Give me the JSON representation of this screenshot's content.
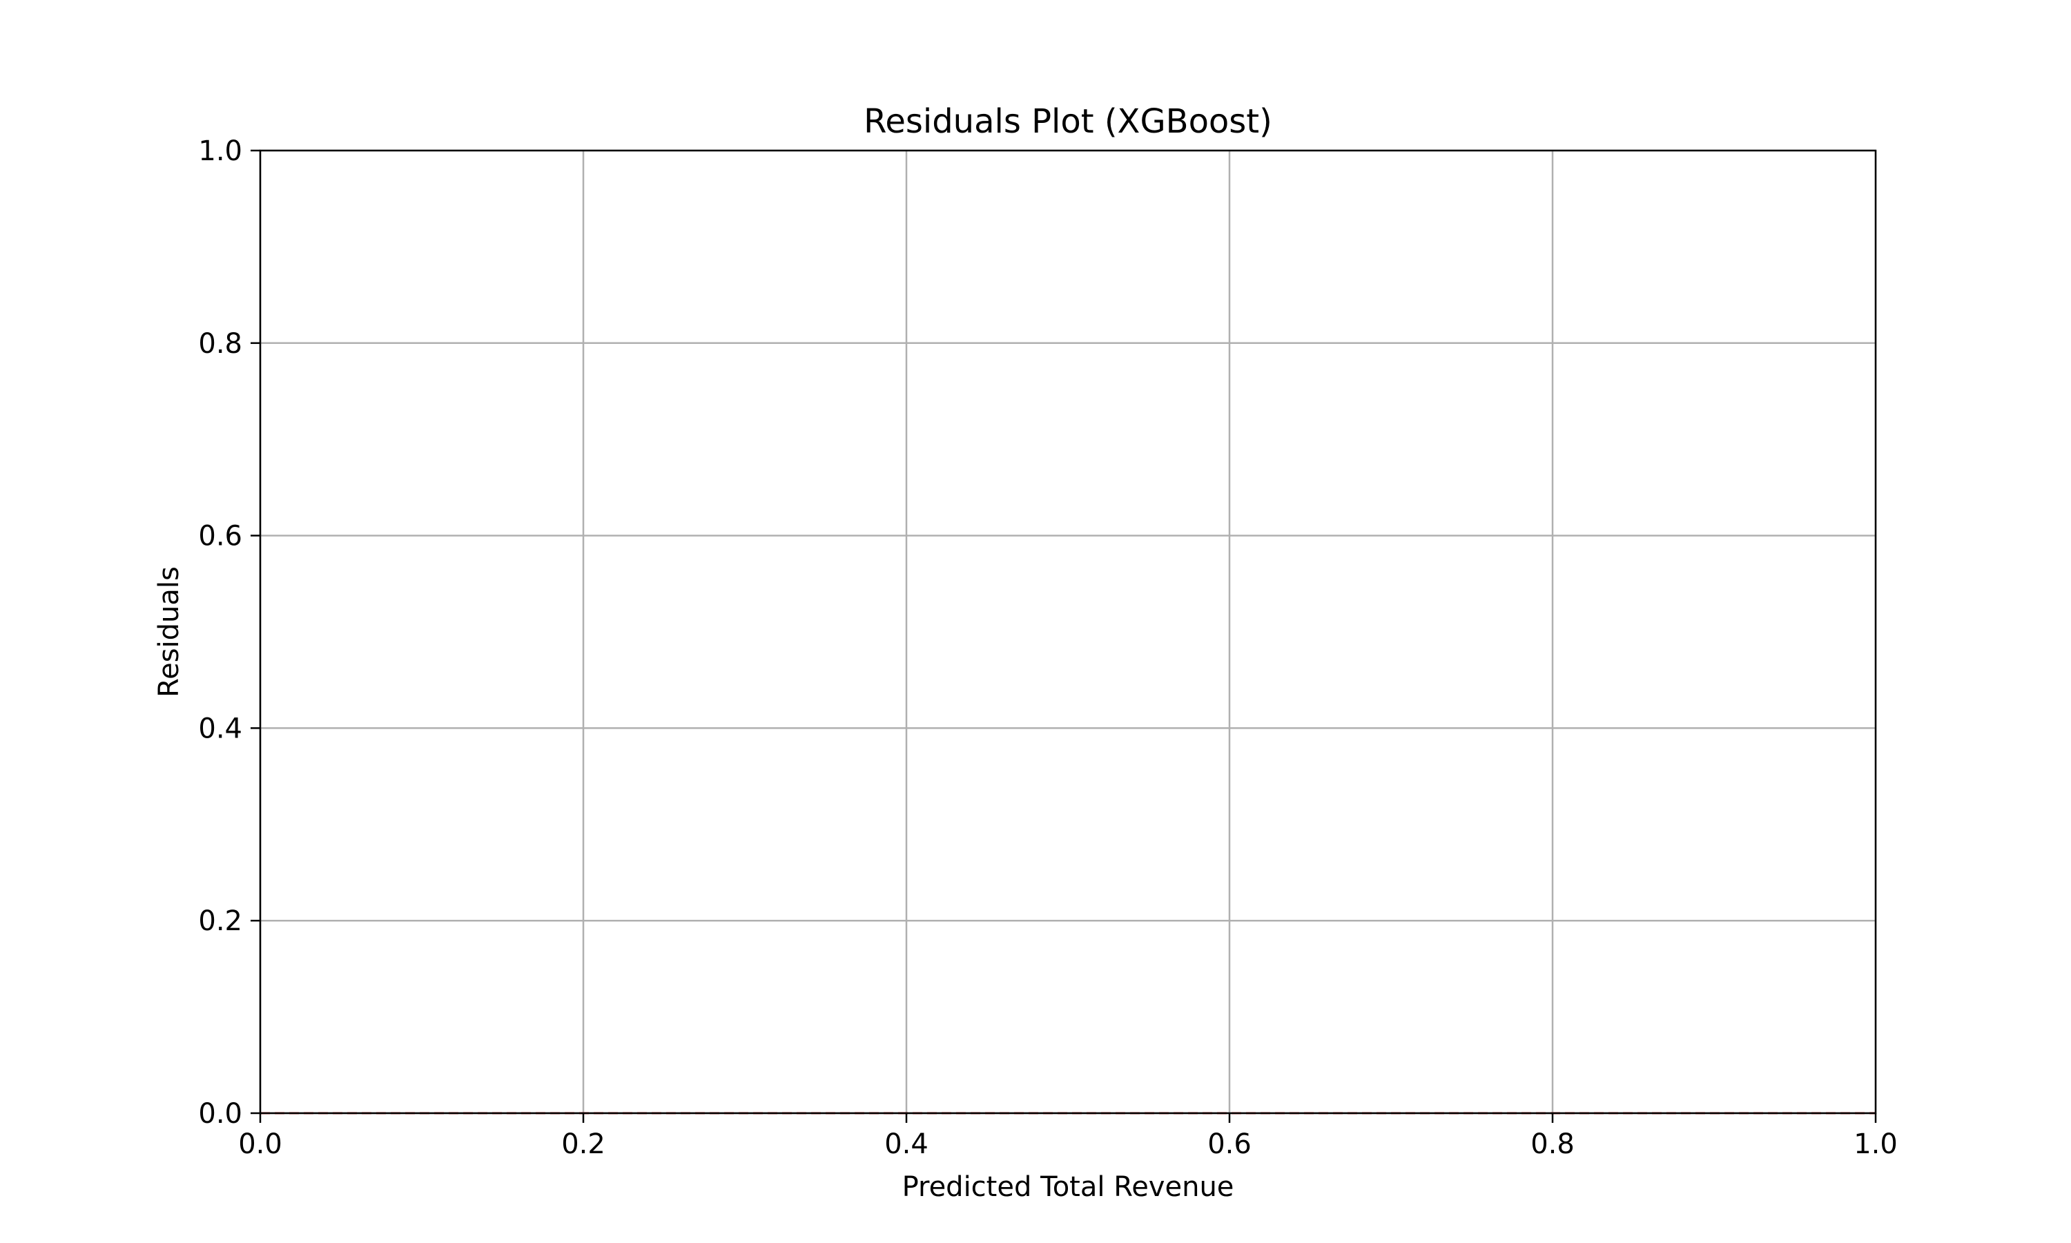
{
  "chart_data": {
    "type": "scatter",
    "title": "Residuals Plot (XGBoost)",
    "xlabel": "Predicted Total Revenue",
    "ylabel": "Residuals",
    "xlim": [
      0.0,
      1.0
    ],
    "ylim": [
      0.0,
      1.0
    ],
    "x_ticks": [
      "0.0",
      "0.2",
      "0.4",
      "0.6",
      "0.8",
      "1.0"
    ],
    "y_ticks": [
      "0.0",
      "0.2",
      "0.4",
      "0.6",
      "0.8",
      "1.0"
    ],
    "grid": true,
    "series": [
      {
        "x": [],
        "y": []
      }
    ],
    "reference_line": {
      "y": 0.0,
      "style": "dashed",
      "color": "#d62728"
    },
    "colors": {
      "grid": "#b0b0b0",
      "axes": "#000000",
      "reference_line": "#d62728"
    }
  }
}
